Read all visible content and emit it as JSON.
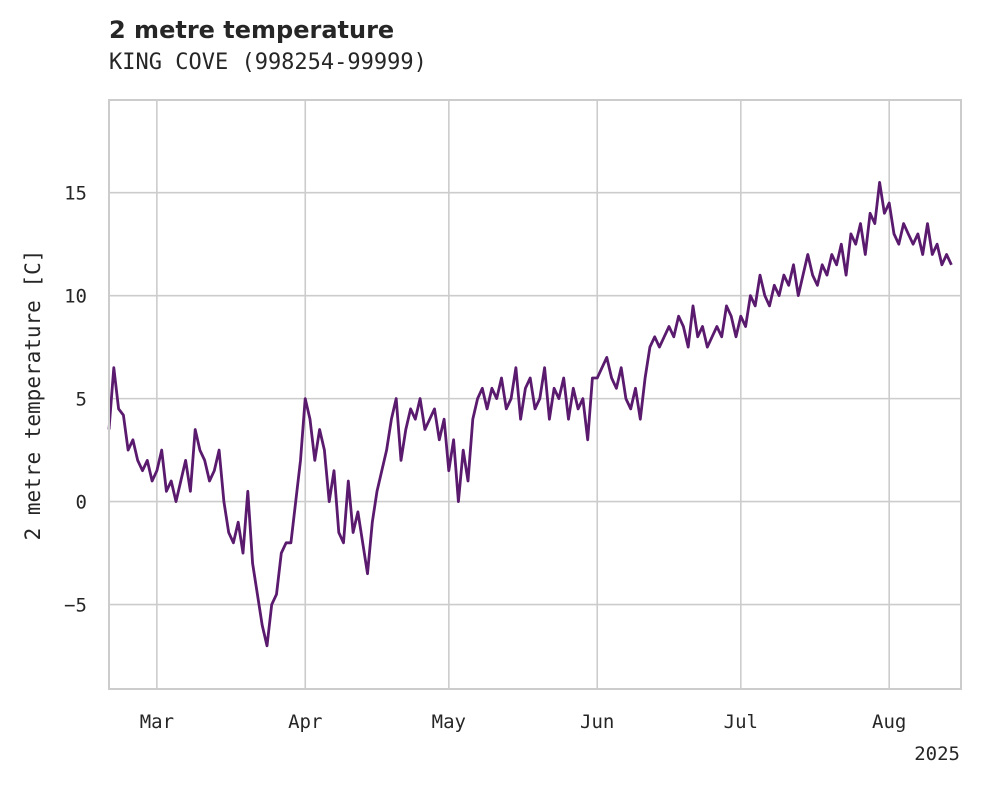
{
  "chart_data": {
    "type": "line",
    "title": "2 metre temperature",
    "subtitle": "KING COVE (998254-99999)",
    "ylabel": "2 metre temperature [C]",
    "xlabel": "",
    "year_label": "2025",
    "xlim": [
      "2025-02-19",
      "2025-08-16"
    ],
    "ylim": [
      -9.1,
      19.5
    ],
    "x_ticks": [
      {
        "date": "2025-03-01",
        "label": "Mar"
      },
      {
        "date": "2025-04-01",
        "label": "Apr"
      },
      {
        "date": "2025-05-01",
        "label": "May"
      },
      {
        "date": "2025-06-01",
        "label": "Jun"
      },
      {
        "date": "2025-07-01",
        "label": "Jul"
      },
      {
        "date": "2025-08-01",
        "label": "Aug"
      }
    ],
    "y_ticks": [
      {
        "value": -5,
        "label": "−5"
      },
      {
        "value": 0,
        "label": "0"
      },
      {
        "value": 5,
        "label": "5"
      },
      {
        "value": 10,
        "label": "10"
      },
      {
        "value": 15,
        "label": "15"
      }
    ],
    "grid": true,
    "line_color": "#5a1a6e",
    "series": [
      {
        "points": [
          [
            "2025-02-19",
            3.5
          ],
          [
            "2025-02-20",
            6.5
          ],
          [
            "2025-02-21",
            4.5
          ],
          [
            "2025-02-22",
            4.2
          ],
          [
            "2025-02-23",
            2.5
          ],
          [
            "2025-02-24",
            3.0
          ],
          [
            "2025-02-25",
            2.0
          ],
          [
            "2025-02-26",
            1.5
          ],
          [
            "2025-02-27",
            2.0
          ],
          [
            "2025-02-28",
            1.0
          ],
          [
            "2025-03-01",
            1.5
          ],
          [
            "2025-03-02",
            2.5
          ],
          [
            "2025-03-03",
            0.5
          ],
          [
            "2025-03-04",
            1.0
          ],
          [
            "2025-03-05",
            0.0
          ],
          [
            "2025-03-06",
            1.0
          ],
          [
            "2025-03-07",
            2.0
          ],
          [
            "2025-03-08",
            0.5
          ],
          [
            "2025-03-09",
            3.5
          ],
          [
            "2025-03-10",
            2.5
          ],
          [
            "2025-03-11",
            2.0
          ],
          [
            "2025-03-12",
            1.0
          ],
          [
            "2025-03-13",
            1.5
          ],
          [
            "2025-03-14",
            2.5
          ],
          [
            "2025-03-15",
            0.0
          ],
          [
            "2025-03-16",
            -1.5
          ],
          [
            "2025-03-17",
            -2.0
          ],
          [
            "2025-03-18",
            -1.0
          ],
          [
            "2025-03-19",
            -2.5
          ],
          [
            "2025-03-20",
            0.5
          ],
          [
            "2025-03-21",
            -3.0
          ],
          [
            "2025-03-22",
            -4.5
          ],
          [
            "2025-03-23",
            -6.0
          ],
          [
            "2025-03-24",
            -7.0
          ],
          [
            "2025-03-25",
            -5.0
          ],
          [
            "2025-03-26",
            -4.5
          ],
          [
            "2025-03-27",
            -2.5
          ],
          [
            "2025-03-28",
            -2.0
          ],
          [
            "2025-03-29",
            -2.0
          ],
          [
            "2025-03-30",
            0.0
          ],
          [
            "2025-03-31",
            2.0
          ],
          [
            "2025-04-01",
            5.0
          ],
          [
            "2025-04-02",
            4.0
          ],
          [
            "2025-04-03",
            2.0
          ],
          [
            "2025-04-04",
            3.5
          ],
          [
            "2025-04-05",
            2.5
          ],
          [
            "2025-04-06",
            0.0
          ],
          [
            "2025-04-07",
            1.5
          ],
          [
            "2025-04-08",
            -1.5
          ],
          [
            "2025-04-09",
            -2.0
          ],
          [
            "2025-04-10",
            1.0
          ],
          [
            "2025-04-11",
            -1.5
          ],
          [
            "2025-04-12",
            -0.5
          ],
          [
            "2025-04-13",
            -2.0
          ],
          [
            "2025-04-14",
            -3.5
          ],
          [
            "2025-04-15",
            -1.0
          ],
          [
            "2025-04-16",
            0.5
          ],
          [
            "2025-04-17",
            1.5
          ],
          [
            "2025-04-18",
            2.5
          ],
          [
            "2025-04-19",
            4.0
          ],
          [
            "2025-04-20",
            5.0
          ],
          [
            "2025-04-21",
            2.0
          ],
          [
            "2025-04-22",
            3.5
          ],
          [
            "2025-04-23",
            4.5
          ],
          [
            "2025-04-24",
            4.0
          ],
          [
            "2025-04-25",
            5.0
          ],
          [
            "2025-04-26",
            3.5
          ],
          [
            "2025-04-27",
            4.0
          ],
          [
            "2025-04-28",
            4.5
          ],
          [
            "2025-04-29",
            3.0
          ],
          [
            "2025-04-30",
            4.0
          ],
          [
            "2025-05-01",
            1.5
          ],
          [
            "2025-05-02",
            3.0
          ],
          [
            "2025-05-03",
            0.0
          ],
          [
            "2025-05-04",
            2.5
          ],
          [
            "2025-05-05",
            1.0
          ],
          [
            "2025-05-06",
            4.0
          ],
          [
            "2025-05-07",
            5.0
          ],
          [
            "2025-05-08",
            5.5
          ],
          [
            "2025-05-09",
            4.5
          ],
          [
            "2025-05-10",
            5.5
          ],
          [
            "2025-05-11",
            5.0
          ],
          [
            "2025-05-12",
            6.0
          ],
          [
            "2025-05-13",
            4.5
          ],
          [
            "2025-05-14",
            5.0
          ],
          [
            "2025-05-15",
            6.5
          ],
          [
            "2025-05-16",
            4.0
          ],
          [
            "2025-05-17",
            5.5
          ],
          [
            "2025-05-18",
            6.0
          ],
          [
            "2025-05-19",
            4.5
          ],
          [
            "2025-05-20",
            5.0
          ],
          [
            "2025-05-21",
            6.5
          ],
          [
            "2025-05-22",
            4.0
          ],
          [
            "2025-05-23",
            5.5
          ],
          [
            "2025-05-24",
            5.0
          ],
          [
            "2025-05-25",
            6.0
          ],
          [
            "2025-05-26",
            4.0
          ],
          [
            "2025-05-27",
            5.5
          ],
          [
            "2025-05-28",
            4.5
          ],
          [
            "2025-05-29",
            5.0
          ],
          [
            "2025-05-30",
            3.0
          ],
          [
            "2025-05-31",
            6.0
          ],
          [
            "2025-06-01",
            6.0
          ],
          [
            "2025-06-02",
            6.5
          ],
          [
            "2025-06-03",
            7.0
          ],
          [
            "2025-06-04",
            6.0
          ],
          [
            "2025-06-05",
            5.5
          ],
          [
            "2025-06-06",
            6.5
          ],
          [
            "2025-06-07",
            5.0
          ],
          [
            "2025-06-08",
            4.5
          ],
          [
            "2025-06-09",
            5.5
          ],
          [
            "2025-06-10",
            4.0
          ],
          [
            "2025-06-11",
            6.0
          ],
          [
            "2025-06-12",
            7.5
          ],
          [
            "2025-06-13",
            8.0
          ],
          [
            "2025-06-14",
            7.5
          ],
          [
            "2025-06-15",
            8.0
          ],
          [
            "2025-06-16",
            8.5
          ],
          [
            "2025-06-17",
            8.0
          ],
          [
            "2025-06-18",
            9.0
          ],
          [
            "2025-06-19",
            8.5
          ],
          [
            "2025-06-20",
            7.5
          ],
          [
            "2025-06-21",
            9.5
          ],
          [
            "2025-06-22",
            8.0
          ],
          [
            "2025-06-23",
            8.5
          ],
          [
            "2025-06-24",
            7.5
          ],
          [
            "2025-06-25",
            8.0
          ],
          [
            "2025-06-26",
            8.5
          ],
          [
            "2025-06-27",
            8.0
          ],
          [
            "2025-06-28",
            9.5
          ],
          [
            "2025-06-29",
            9.0
          ],
          [
            "2025-06-30",
            8.0
          ],
          [
            "2025-07-01",
            9.0
          ],
          [
            "2025-07-02",
            8.5
          ],
          [
            "2025-07-03",
            10.0
          ],
          [
            "2025-07-04",
            9.5
          ],
          [
            "2025-07-05",
            11.0
          ],
          [
            "2025-07-06",
            10.0
          ],
          [
            "2025-07-07",
            9.5
          ],
          [
            "2025-07-08",
            10.5
          ],
          [
            "2025-07-09",
            10.0
          ],
          [
            "2025-07-10",
            11.0
          ],
          [
            "2025-07-11",
            10.5
          ],
          [
            "2025-07-12",
            11.5
          ],
          [
            "2025-07-13",
            10.0
          ],
          [
            "2025-07-14",
            11.0
          ],
          [
            "2025-07-15",
            12.0
          ],
          [
            "2025-07-16",
            11.0
          ],
          [
            "2025-07-17",
            10.5
          ],
          [
            "2025-07-18",
            11.5
          ],
          [
            "2025-07-19",
            11.0
          ],
          [
            "2025-07-20",
            12.0
          ],
          [
            "2025-07-21",
            11.5
          ],
          [
            "2025-07-22",
            12.5
          ],
          [
            "2025-07-23",
            11.0
          ],
          [
            "2025-07-24",
            13.0
          ],
          [
            "2025-07-25",
            12.5
          ],
          [
            "2025-07-26",
            13.5
          ],
          [
            "2025-07-27",
            12.0
          ],
          [
            "2025-07-28",
            14.0
          ],
          [
            "2025-07-29",
            13.5
          ],
          [
            "2025-07-30",
            15.5
          ],
          [
            "2025-07-31",
            14.0
          ],
          [
            "2025-08-01",
            14.5
          ],
          [
            "2025-08-02",
            13.0
          ],
          [
            "2025-08-03",
            12.5
          ],
          [
            "2025-08-04",
            13.5
          ],
          [
            "2025-08-05",
            13.0
          ],
          [
            "2025-08-06",
            12.5
          ],
          [
            "2025-08-07",
            13.0
          ],
          [
            "2025-08-08",
            12.0
          ],
          [
            "2025-08-09",
            13.5
          ],
          [
            "2025-08-10",
            12.0
          ],
          [
            "2025-08-11",
            12.5
          ],
          [
            "2025-08-12",
            11.5
          ],
          [
            "2025-08-13",
            12.0
          ],
          [
            "2025-08-14",
            11.5
          ]
        ]
      }
    ]
  }
}
